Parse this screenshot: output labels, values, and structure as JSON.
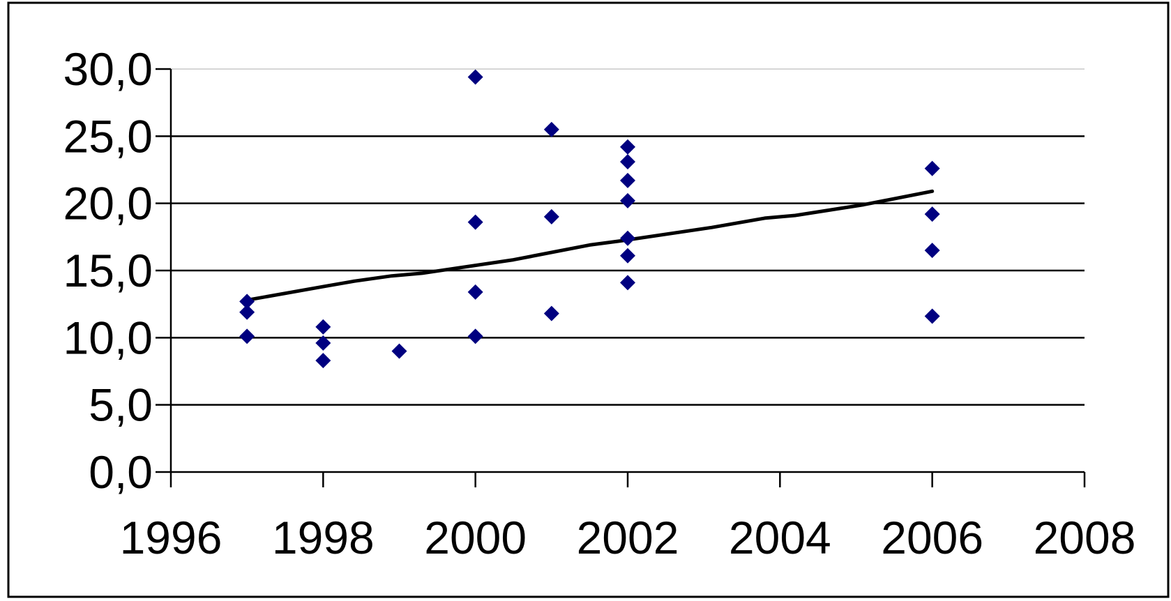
{
  "chart_data": {
    "type": "scatter",
    "title": "",
    "xlabel": "",
    "ylabel": "",
    "xlim": [
      1996,
      2008
    ],
    "ylim": [
      0,
      30
    ],
    "xticks": [
      "1996",
      "1998",
      "2000",
      "2002",
      "2004",
      "2006",
      "2008"
    ],
    "yticks": [
      "0,0",
      "5,0",
      "10,0",
      "15,0",
      "20,0",
      "25,0",
      "30,0"
    ],
    "grid": "horizontal",
    "legend": "none",
    "marker_color": "#000080",
    "trend_color": "#000000",
    "series": [
      {
        "marker": "diamond",
        "x": [
          1997,
          1997,
          1997,
          1998,
          1998,
          1998,
          1999,
          2000,
          2000,
          2000,
          2000,
          2001,
          2001,
          2001,
          2002,
          2002,
          2002,
          2002,
          2002,
          2002,
          2002,
          2006,
          2006,
          2006,
          2006
        ],
        "y": [
          12.7,
          11.9,
          10.1,
          10.8,
          9.6,
          8.3,
          9.0,
          29.4,
          18.6,
          13.4,
          10.1,
          25.5,
          19.0,
          11.8,
          24.2,
          23.1,
          21.7,
          20.2,
          17.4,
          16.1,
          14.1,
          22.6,
          19.2,
          16.5,
          11.6
        ]
      }
    ],
    "trendline": {
      "x": [
        1997,
        1998,
        1998.4,
        1998.9,
        1999.3,
        2000.5,
        2001.5,
        2001.9,
        2003.1,
        2003.8,
        2004.2,
        2005.1,
        2006
      ],
      "y": [
        12.8,
        13.8,
        14.2,
        14.6,
        14.8,
        15.8,
        16.9,
        17.2,
        18.2,
        18.9,
        19.1,
        19.9,
        20.9
      ]
    }
  }
}
